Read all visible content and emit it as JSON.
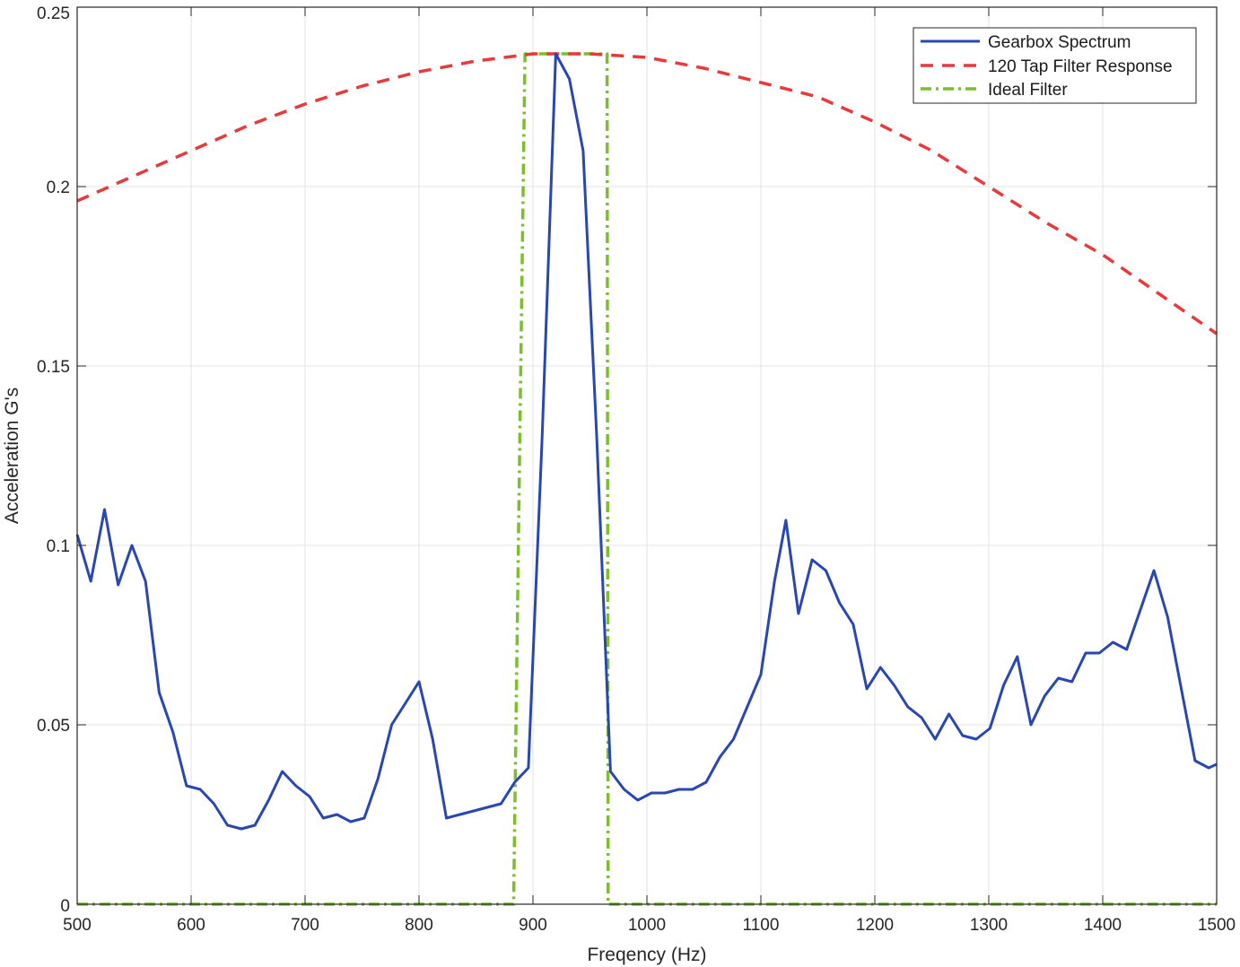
{
  "chart_data": {
    "type": "line",
    "title": "",
    "xlabel": "Freqency (Hz)",
    "ylabel": "Acceleration G's",
    "xlim": [
      500,
      1500
    ],
    "ylim": [
      0,
      0.25
    ],
    "grid": true,
    "legend_position": "top-right",
    "x_ticks": [
      "500",
      "600",
      "700",
      "800",
      "900",
      "1000",
      "1100",
      "1200",
      "1300",
      "1400",
      "1500"
    ],
    "y_ticks": [
      "0",
      "0.05",
      "0.1",
      "0.15",
      "0.2",
      "0.25"
    ],
    "series": [
      {
        "name": "Gearbox Spectrum",
        "color": "#2846b4",
        "style": "solid",
        "x": [
          500,
          512,
          524,
          536,
          548,
          560,
          572,
          584,
          596,
          608,
          620,
          632,
          644,
          656,
          668,
          680,
          692,
          704,
          716,
          728,
          740,
          752,
          764,
          776,
          788,
          800,
          812,
          824,
          836,
          848,
          860,
          872,
          884,
          896,
          908,
          920,
          932,
          944,
          956,
          968,
          980,
          992,
          1004,
          1016,
          1028,
          1040,
          1052,
          1064,
          1076,
          1088,
          1100,
          1112,
          1122,
          1133,
          1145,
          1157,
          1169,
          1181,
          1193,
          1205,
          1217,
          1229,
          1241,
          1253,
          1265,
          1277,
          1289,
          1301,
          1313,
          1325,
          1337,
          1349,
          1361,
          1373,
          1385,
          1397,
          1409,
          1421,
          1433,
          1445,
          1457,
          1469,
          1481,
          1493,
          1500
        ],
        "y": [
          0.103,
          0.09,
          0.11,
          0.089,
          0.1,
          0.09,
          0.059,
          0.048,
          0.033,
          0.032,
          0.028,
          0.022,
          0.021,
          0.022,
          0.029,
          0.037,
          0.033,
          0.03,
          0.024,
          0.025,
          0.023,
          0.024,
          0.035,
          0.05,
          0.056,
          0.062,
          0.046,
          0.024,
          0.025,
          0.026,
          0.027,
          0.028,
          0.034,
          0.038,
          0.13,
          0.237,
          0.23,
          0.21,
          0.13,
          0.037,
          0.032,
          0.029,
          0.031,
          0.031,
          0.032,
          0.032,
          0.034,
          0.041,
          0.046,
          0.055,
          0.064,
          0.09,
          0.107,
          0.081,
          0.096,
          0.093,
          0.084,
          0.078,
          0.06,
          0.066,
          0.061,
          0.055,
          0.052,
          0.046,
          0.053,
          0.047,
          0.046,
          0.049,
          0.061,
          0.069,
          0.05,
          0.058,
          0.063,
          0.062,
          0.07,
          0.07,
          0.073,
          0.071,
          0.082,
          0.093,
          0.08,
          0.06,
          0.04,
          0.038,
          0.039
        ]
      },
      {
        "name": "120 Tap Filter Response",
        "color": "#e8393b",
        "style": "dashed",
        "x": [
          500,
          550,
          600,
          650,
          700,
          750,
          800,
          850,
          900,
          950,
          1000,
          1050,
          1100,
          1150,
          1200,
          1250,
          1300,
          1350,
          1400,
          1450,
          1500
        ],
        "y": [
          0.196,
          0.203,
          0.21,
          0.217,
          0.223,
          0.228,
          0.232,
          0.235,
          0.237,
          0.237,
          0.236,
          0.233,
          0.229,
          0.225,
          0.218,
          0.21,
          0.2,
          0.19,
          0.181,
          0.17,
          0.159
        ]
      },
      {
        "name": "Ideal Filter",
        "color": "#7cbf2a",
        "style": "dashdot",
        "x": [
          500,
          883,
          893,
          895,
          962,
          965,
          966,
          1500
        ],
        "y": [
          0,
          0,
          0.237,
          0.237,
          0.237,
          0.237,
          0,
          0
        ]
      }
    ]
  }
}
